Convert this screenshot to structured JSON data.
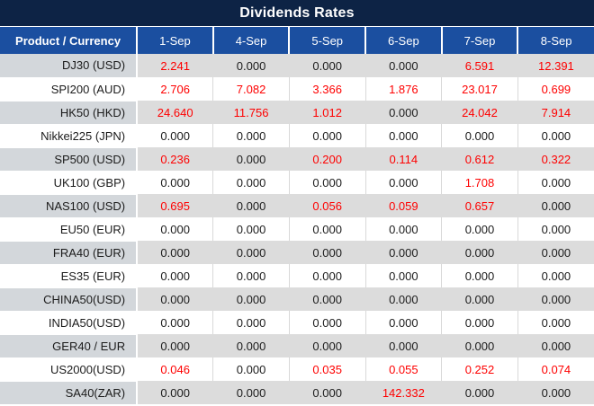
{
  "title": "Dividends Rates",
  "colors": {
    "title_bg": "#0d2345",
    "header_bg": "#1b4fa0",
    "header_text": "#ffffff",
    "row_gray_values": "#dcdcdc",
    "row_gray_label": "#d3d7db",
    "row_white": "#ffffff",
    "value_nonzero_red": "#fe0000",
    "value_zero_black": "#1b1b1b"
  },
  "chart_data": {
    "type": "table",
    "title": "Dividends Rates",
    "columns": [
      "Product / Currency",
      "1-Sep",
      "4-Sep",
      "5-Sep",
      "6-Sep",
      "7-Sep",
      "8-Sep"
    ],
    "rows": [
      {
        "label": "DJ30 (USD)",
        "values": [
          "2.241",
          "0.000",
          "0.000",
          "0.000",
          "6.591",
          "12.391"
        ]
      },
      {
        "label": "SPI200 (AUD)",
        "values": [
          "2.706",
          "7.082",
          "3.366",
          "1.876",
          "23.017",
          "0.699"
        ]
      },
      {
        "label": "HK50 (HKD)",
        "values": [
          "24.640",
          "11.756",
          "1.012",
          "0.000",
          "24.042",
          "7.914"
        ]
      },
      {
        "label": "Nikkei225 (JPN)",
        "values": [
          "0.000",
          "0.000",
          "0.000",
          "0.000",
          "0.000",
          "0.000"
        ]
      },
      {
        "label": "SP500 (USD)",
        "values": [
          "0.236",
          "0.000",
          "0.200",
          "0.114",
          "0.612",
          "0.322"
        ]
      },
      {
        "label": "UK100 (GBP)",
        "values": [
          "0.000",
          "0.000",
          "0.000",
          "0.000",
          "1.708",
          "0.000"
        ]
      },
      {
        "label": "NAS100 (USD)",
        "values": [
          "0.695",
          "0.000",
          "0.056",
          "0.059",
          "0.657",
          "0.000"
        ]
      },
      {
        "label": "EU50 (EUR)",
        "values": [
          "0.000",
          "0.000",
          "0.000",
          "0.000",
          "0.000",
          "0.000"
        ]
      },
      {
        "label": "FRA40 (EUR)",
        "values": [
          "0.000",
          "0.000",
          "0.000",
          "0.000",
          "0.000",
          "0.000"
        ]
      },
      {
        "label": "ES35 (EUR)",
        "values": [
          "0.000",
          "0.000",
          "0.000",
          "0.000",
          "0.000",
          "0.000"
        ]
      },
      {
        "label": "CHINA50(USD)",
        "values": [
          "0.000",
          "0.000",
          "0.000",
          "0.000",
          "0.000",
          "0.000"
        ]
      },
      {
        "label": "INDIA50(USD)",
        "values": [
          "0.000",
          "0.000",
          "0.000",
          "0.000",
          "0.000",
          "0.000"
        ]
      },
      {
        "label": "GER40 / EUR",
        "values": [
          "0.000",
          "0.000",
          "0.000",
          "0.000",
          "0.000",
          "0.000"
        ]
      },
      {
        "label": "US2000(USD)",
        "values": [
          "0.046",
          "0.000",
          "0.035",
          "0.055",
          "0.252",
          "0.074"
        ]
      },
      {
        "label": "SA40(ZAR)",
        "values": [
          "0.000",
          "0.000",
          "0.000",
          "142.332",
          "0.000",
          "0.000"
        ]
      }
    ]
  }
}
